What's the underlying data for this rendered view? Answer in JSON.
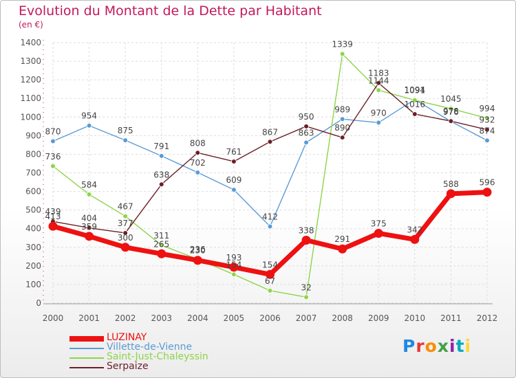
{
  "header": {
    "title": "Evolution du Montant de la Dette par Habitant",
    "subtitle": "(en €)"
  },
  "logo": {
    "text": "Proxiti",
    "colors": [
      "#1e88e5",
      "#e53935",
      "#fb8c00",
      "#43a047",
      "#8e24aa",
      "#00acc1",
      "#fdd835"
    ]
  },
  "colors": {
    "title": "#c2185b",
    "axis": "#555555",
    "grid": "#dddddd",
    "tick_accent": "#c2185b"
  },
  "chart_data": {
    "type": "line",
    "title": "Evolution du Montant de la Dette par Habitant",
    "ylabel": "(en €)",
    "xlabel": "",
    "x": [
      "2000",
      "2001",
      "2002",
      "2003",
      "2004",
      "2005",
      "2006",
      "2007",
      "2008",
      "2009",
      "2010",
      "2011",
      "2012"
    ],
    "ylim": [
      0,
      1400
    ],
    "yticks": [
      0,
      100,
      200,
      300,
      400,
      500,
      600,
      700,
      800,
      900,
      1000,
      1100,
      1200,
      1300,
      1400
    ],
    "grid": true,
    "legend_position": "bottom-left",
    "series": [
      {
        "name": "LUZINAY",
        "color": "#ee1111",
        "emphasis": true,
        "values": [
          413,
          359,
          300,
          265,
          230,
          193,
          154,
          338,
          291,
          375,
          342,
          588,
          596
        ]
      },
      {
        "name": "Villette-de-Vienne",
        "color": "#5b9bd5",
        "values": [
          870,
          954,
          875,
          791,
          702,
          609,
          412,
          863,
          989,
          970,
          1094,
          976,
          874
        ]
      },
      {
        "name": "Saint-Just-Chaleyssin",
        "color": "#8ed44a",
        "values": [
          736,
          584,
          467,
          311,
          236,
          154,
          67,
          32,
          1339,
          1144,
          1091,
          1045,
          994
        ]
      },
      {
        "name": "Serpaize",
        "color": "#6b1f28",
        "values": [
          439,
          404,
          377,
          638,
          808,
          761,
          867,
          950,
          890,
          1183,
          1016,
          978,
          932
        ]
      }
    ]
  }
}
